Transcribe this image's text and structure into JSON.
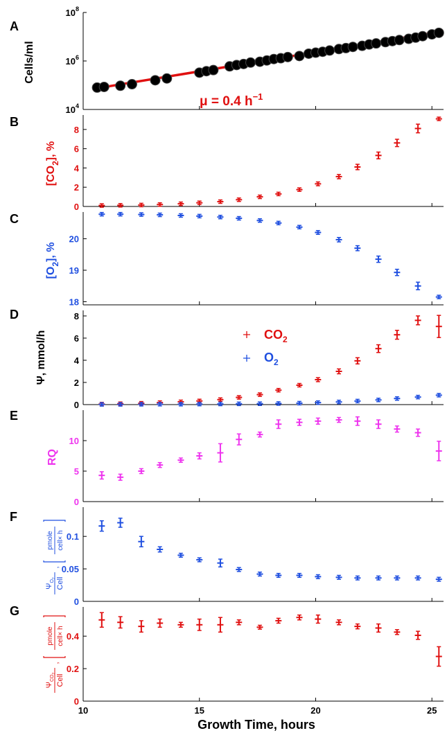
{
  "colors": {
    "red": "#e01010",
    "blue": "#1f4fe0",
    "magenta": "#ee33ee",
    "black": "#000000"
  },
  "xaxis": {
    "label": "Growth Time, hours",
    "range": [
      10,
      25.5
    ],
    "ticks": [
      10,
      15,
      20,
      25
    ]
  },
  "chart_data": [
    {
      "panel": "A",
      "type": "scatter",
      "ylabel": "Cells/ml",
      "yscale": "log",
      "ylim": [
        10000,
        100000000
      ],
      "yticks": [
        10000,
        1000000,
        100000000
      ],
      "ytick_labels": [
        {
          "base": "10",
          "exp": "4"
        },
        {
          "base": "10",
          "exp": "6"
        },
        {
          "base": "10",
          "exp": "8"
        }
      ],
      "annotation": {
        "prefix": "μ = 0.4 h",
        "sup": "−1"
      },
      "fit": {
        "x": [
          10.4,
          25.5
        ],
        "y": [
          70000,
          17000000
        ]
      },
      "series": [
        {
          "color": "black",
          "x": [
            10.6,
            10.9,
            11.6,
            12.1,
            13.1,
            13.6,
            15.0,
            15.3,
            15.6,
            16.3,
            16.6,
            16.9,
            17.2,
            17.6,
            17.9,
            18.2,
            18.5,
            18.8,
            19.3,
            19.7,
            20.0,
            20.3,
            20.6,
            21.0,
            21.3,
            21.6,
            22.0,
            22.3,
            22.6,
            23.0,
            23.3,
            23.6,
            24.0,
            24.3,
            24.6,
            25.0,
            25.3
          ],
          "y": [
            80000,
            85000,
            95000,
            110000,
            160000,
            190000,
            330000,
            380000,
            420000,
            600000,
            680000,
            750000,
            860000,
            930000,
            1050000,
            1200000,
            1300000,
            1450000,
            1600000,
            2000000,
            2200000,
            2400000,
            2700000,
            3100000,
            3400000,
            3800000,
            4200000,
            4800000,
            5300000,
            6000000,
            6600000,
            7300000,
            8200000,
            9200000,
            10500000,
            12500000,
            14500000
          ]
        }
      ]
    },
    {
      "panel": "B",
      "type": "scatter",
      "ylabel_parts": [
        "[CO",
        "2",
        "], %"
      ],
      "ylim": [
        0,
        9.5
      ],
      "yticks": [
        0,
        2,
        4,
        6,
        8
      ],
      "series": [
        {
          "color": "red",
          "x": [
            10.8,
            11.6,
            12.5,
            13.3,
            14.2,
            15.0,
            15.9,
            16.7,
            17.6,
            18.4,
            19.3,
            20.1,
            21.0,
            21.8,
            22.7,
            23.5,
            24.4,
            25.3
          ],
          "y": [
            0.1,
            0.12,
            0.15,
            0.2,
            0.28,
            0.38,
            0.5,
            0.7,
            1.0,
            1.3,
            1.75,
            2.35,
            3.1,
            4.1,
            5.3,
            6.6,
            8.1,
            9.1
          ],
          "err": [
            0.08,
            0.08,
            0.08,
            0.1,
            0.1,
            0.12,
            0.12,
            0.15,
            0.15,
            0.15,
            0.18,
            0.2,
            0.22,
            0.28,
            0.35,
            0.38,
            0.45,
            0.18
          ]
        }
      ]
    },
    {
      "panel": "C",
      "type": "scatter",
      "ylabel_parts": [
        "[O",
        "2",
        "], %"
      ],
      "ylim": [
        17.9,
        20.85
      ],
      "yticks": [
        18,
        19,
        20
      ],
      "series": [
        {
          "color": "blue",
          "x": [
            10.8,
            11.6,
            12.5,
            13.3,
            14.2,
            15.0,
            15.9,
            16.7,
            17.6,
            18.4,
            19.3,
            20.1,
            21.0,
            21.8,
            22.7,
            23.5,
            24.4,
            25.3
          ],
          "y": [
            20.78,
            20.78,
            20.77,
            20.76,
            20.74,
            20.72,
            20.69,
            20.65,
            20.58,
            20.5,
            20.37,
            20.2,
            19.97,
            19.7,
            19.35,
            18.93,
            18.5,
            18.15
          ],
          "err": [
            0.05,
            0.05,
            0.05,
            0.05,
            0.05,
            0.05,
            0.05,
            0.05,
            0.05,
            0.05,
            0.05,
            0.06,
            0.07,
            0.08,
            0.1,
            0.1,
            0.12,
            0.05
          ]
        }
      ]
    },
    {
      "panel": "D",
      "type": "scatter",
      "ylabel_parts": [
        "Ψ,  mmol/h"
      ],
      "ylim": [
        0,
        8.5
      ],
      "yticks": [
        0,
        2,
        4,
        6,
        8
      ],
      "legend": [
        {
          "color": "red",
          "name_base": "CO",
          "name_sub": "2"
        },
        {
          "color": "blue",
          "name_base": "O",
          "name_sub": "2"
        }
      ],
      "series": [
        {
          "color": "red",
          "x": [
            10.8,
            11.6,
            12.5,
            13.3,
            14.2,
            15.0,
            15.9,
            16.7,
            17.6,
            18.4,
            19.3,
            20.1,
            21.0,
            21.8,
            22.7,
            23.5,
            24.4,
            25.3
          ],
          "y": [
            0.05,
            0.08,
            0.12,
            0.18,
            0.25,
            0.33,
            0.45,
            0.65,
            0.9,
            1.3,
            1.75,
            2.25,
            3.0,
            3.95,
            5.05,
            6.3,
            7.6,
            7.05
          ],
          "err": [
            0.05,
            0.05,
            0.05,
            0.05,
            0.06,
            0.06,
            0.08,
            0.1,
            0.1,
            0.12,
            0.15,
            0.18,
            0.22,
            0.28,
            0.35,
            0.4,
            0.4,
            1.0
          ]
        },
        {
          "color": "blue",
          "x": [
            10.8,
            11.6,
            12.5,
            13.3,
            14.2,
            15.0,
            15.9,
            16.7,
            17.6,
            18.4,
            19.3,
            20.1,
            21.0,
            21.8,
            22.7,
            23.5,
            24.4,
            25.3
          ],
          "y": [
            0.02,
            0.02,
            0.03,
            0.04,
            0.04,
            0.05,
            0.06,
            0.07,
            0.08,
            0.1,
            0.13,
            0.18,
            0.24,
            0.32,
            0.42,
            0.55,
            0.68,
            0.85
          ],
          "err": [
            0.03,
            0.03,
            0.03,
            0.03,
            0.03,
            0.03,
            0.03,
            0.03,
            0.03,
            0.03,
            0.03,
            0.04,
            0.04,
            0.05,
            0.05,
            0.06,
            0.08,
            0.1
          ]
        }
      ]
    },
    {
      "panel": "E",
      "type": "scatter",
      "ylabel_parts": [
        "RQ"
      ],
      "ylim": [
        0,
        15
      ],
      "yticks": [
        0,
        5,
        10
      ],
      "series": [
        {
          "color": "magenta",
          "x": [
            10.8,
            11.6,
            12.5,
            13.3,
            14.2,
            15.0,
            15.9,
            16.7,
            17.6,
            18.4,
            19.3,
            20.1,
            21.0,
            21.8,
            22.7,
            23.5,
            24.4,
            25.3
          ],
          "y": [
            4.3,
            4.0,
            5.0,
            6.0,
            6.8,
            7.5,
            8.0,
            10.2,
            11.0,
            12.7,
            13.0,
            13.2,
            13.4,
            13.2,
            12.7,
            11.9,
            11.3,
            8.3
          ],
          "err": [
            0.6,
            0.5,
            0.4,
            0.4,
            0.35,
            0.5,
            1.5,
            0.9,
            0.4,
            0.7,
            0.5,
            0.5,
            0.4,
            0.7,
            0.7,
            0.5,
            0.6,
            1.6
          ]
        }
      ]
    },
    {
      "panel": "F",
      "type": "scatter",
      "ylim": [
        0,
        0.145
      ],
      "yticks": [
        0,
        0.05,
        0.1
      ],
      "ylabel": {
        "psi": "Ψ",
        "sub": "O",
        "subsub": "2",
        "den": "Cell",
        "unit_num": "pmole",
        "unit_den": "cell× h"
      },
      "series": [
        {
          "color": "blue",
          "x": [
            10.8,
            11.6,
            12.5,
            13.3,
            14.2,
            15.0,
            15.9,
            16.7,
            17.6,
            18.4,
            19.3,
            20.1,
            21.0,
            21.8,
            22.7,
            23.5,
            24.4,
            25.3
          ],
          "y": [
            0.116,
            0.121,
            0.092,
            0.08,
            0.071,
            0.064,
            0.059,
            0.049,
            0.042,
            0.04,
            0.04,
            0.038,
            0.037,
            0.036,
            0.036,
            0.036,
            0.036,
            0.034
          ],
          "err": [
            0.008,
            0.007,
            0.008,
            0.004,
            0.003,
            0.003,
            0.006,
            0.003,
            0.003,
            0.003,
            0.003,
            0.003,
            0.003,
            0.003,
            0.003,
            0.003,
            0.003,
            0.003
          ]
        }
      ]
    },
    {
      "panel": "G",
      "type": "scatter",
      "ylim": [
        0,
        0.58
      ],
      "yticks": [
        0,
        0.2,
        0.4
      ],
      "ylabel": {
        "psi": "Ψ",
        "sub": "CO",
        "subsub": "2",
        "den": "Cell",
        "unit_num": "pmole",
        "unit_den": "cell× h"
      },
      "series": [
        {
          "color": "red",
          "x": [
            10.8,
            11.6,
            12.5,
            13.3,
            14.2,
            15.0,
            15.9,
            16.7,
            17.6,
            18.4,
            19.3,
            20.1,
            21.0,
            21.8,
            22.7,
            23.5,
            24.4,
            25.3
          ],
          "y": [
            0.5,
            0.485,
            0.46,
            0.48,
            0.47,
            0.47,
            0.47,
            0.485,
            0.455,
            0.495,
            0.515,
            0.505,
            0.485,
            0.46,
            0.45,
            0.425,
            0.405,
            0.275
          ],
          "err": [
            0.045,
            0.035,
            0.035,
            0.025,
            0.015,
            0.035,
            0.045,
            0.015,
            0.012,
            0.015,
            0.015,
            0.025,
            0.015,
            0.015,
            0.025,
            0.015,
            0.025,
            0.06
          ]
        }
      ]
    }
  ]
}
